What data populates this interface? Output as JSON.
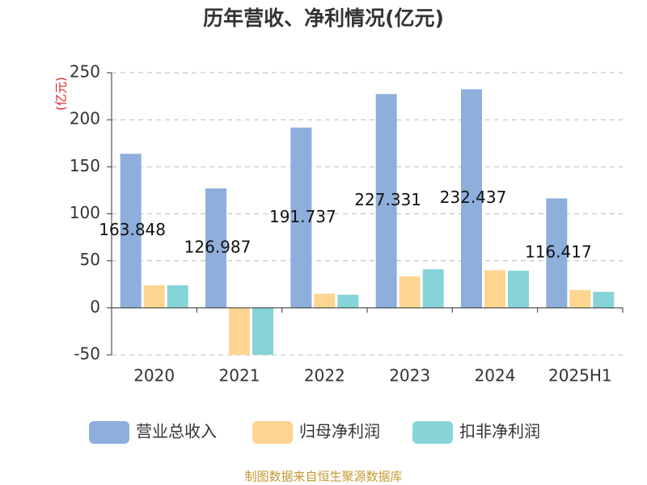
{
  "chart_data": {
    "type": "bar",
    "title": "历年营收、净利情况(亿元)",
    "y_label": "(亿元)",
    "categories": [
      "2020",
      "2021",
      "2022",
      "2023",
      "2024",
      "2025H1"
    ],
    "series": [
      {
        "name": "营业总收入",
        "color": "#8eaedc",
        "values": [
          163.848,
          126.987,
          191.737,
          227.331,
          232.437,
          116.417
        ]
      },
      {
        "name": "归母净利润",
        "color": "#fdd591",
        "values": [
          24,
          -50,
          15,
          33.5,
          40,
          19
        ]
      },
      {
        "name": "扣非净利润",
        "color": "#86d4d8",
        "values": [
          24,
          -50,
          14,
          41,
          39.5,
          17
        ]
      }
    ],
    "ylim": [
      -50,
      250
    ],
    "yticks": [
      -50,
      0,
      50,
      100,
      150,
      200,
      250
    ],
    "grid": true,
    "source": "制图数据来自恒生聚源数据库"
  }
}
